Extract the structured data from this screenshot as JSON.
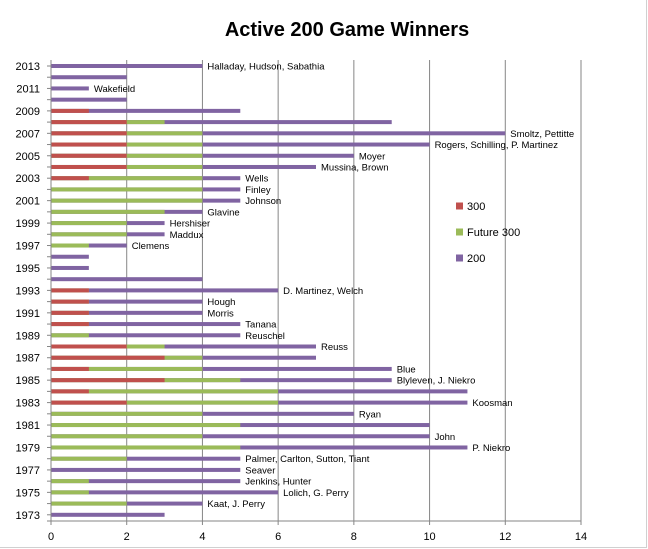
{
  "chart_data": {
    "type": "bar",
    "orientation": "horizontal",
    "stacked": "overlapping",
    "title": "Active 200 Game Winners",
    "xlabel": "",
    "ylabel": "",
    "xlim": [
      0,
      14
    ],
    "x_ticks": [
      0,
      2,
      4,
      6,
      8,
      10,
      12,
      14
    ],
    "grid": "vertical",
    "legend_position": "right",
    "series": [
      {
        "name": "300",
        "color": "#c0504d"
      },
      {
        "name": "Future 300",
        "color": "#9bbb59"
      },
      {
        "name": "200",
        "color": "#8064a2"
      }
    ],
    "years": [
      1973,
      1974,
      1975,
      1976,
      1977,
      1978,
      1979,
      1980,
      1981,
      1982,
      1983,
      1984,
      1985,
      1986,
      1987,
      1988,
      1989,
      1990,
      1991,
      1992,
      1993,
      1994,
      1995,
      1996,
      1997,
      1998,
      1999,
      2000,
      2001,
      2002,
      2003,
      2004,
      2005,
      2006,
      2007,
      2008,
      2009,
      2010,
      2011,
      2012,
      2013
    ],
    "year_tick_labels": [
      "1973",
      "1975",
      "1977",
      "1979",
      "1981",
      "1983",
      "1985",
      "1987",
      "1989",
      "1991",
      "1993",
      "1995",
      "1997",
      "1999",
      "2001",
      "2003",
      "2005",
      "2007",
      "2009",
      "2011",
      "2013"
    ],
    "values_300": [
      0,
      0,
      0,
      0,
      0,
      0,
      0,
      0,
      0,
      0,
      2,
      1,
      3,
      1,
      3,
      2,
      0,
      1,
      1,
      1,
      1,
      0,
      0,
      0,
      0,
      0,
      0,
      0,
      0,
      0,
      1,
      2,
      2,
      2,
      2,
      2,
      1,
      0,
      0,
      0,
      0
    ],
    "values_future_300": [
      0,
      2,
      1,
      1,
      0,
      2,
      5,
      4,
      5,
      4,
      6,
      6,
      5,
      4,
      4,
      3,
      1,
      1,
      1,
      1,
      1,
      0,
      0,
      0,
      1,
      2,
      2,
      3,
      4,
      4,
      4,
      4,
      4,
      4,
      4,
      3,
      0,
      0,
      0,
      0,
      0
    ],
    "values_200": [
      3,
      4,
      6,
      5,
      5,
      5,
      11,
      10,
      10,
      8,
      11,
      11,
      9,
      9,
      7,
      7,
      5,
      5,
      4,
      4,
      6,
      4,
      1,
      1,
      2,
      3,
      3,
      4,
      5,
      5,
      5,
      7,
      8,
      10,
      12,
      9,
      5,
      2,
      1,
      2,
      4
    ],
    "annotations": [
      {
        "year": 2013,
        "text": "Halladay, Hudson, Sabathia"
      },
      {
        "year": 2011,
        "text": "Wakefield"
      },
      {
        "year": 2007,
        "text": "Smoltz, Pettitte"
      },
      {
        "year": 2006,
        "text": "Rogers, Schilling, P. Martinez"
      },
      {
        "year": 2005,
        "text": "Moyer"
      },
      {
        "year": 2004,
        "text": "Mussina, Brown"
      },
      {
        "year": 2003,
        "text": "Wells"
      },
      {
        "year": 2002,
        "text": "Finley"
      },
      {
        "year": 2001,
        "text": "Johnson"
      },
      {
        "year": 2000,
        "text": "Glavine"
      },
      {
        "year": 1999,
        "text": "Hershiser"
      },
      {
        "year": 1998,
        "text": "Maddux"
      },
      {
        "year": 1997,
        "text": "Clemens"
      },
      {
        "year": 1993,
        "text": "D. Martinez, Welch"
      },
      {
        "year": 1992,
        "text": "Hough"
      },
      {
        "year": 1991,
        "text": "Morris"
      },
      {
        "year": 1990,
        "text": "Tanana"
      },
      {
        "year": 1989,
        "text": "Reuschel"
      },
      {
        "year": 1988,
        "text": "Reuss"
      },
      {
        "year": 1986,
        "text": "Blue"
      },
      {
        "year": 1985,
        "text": "Blyleven, J. Niekro"
      },
      {
        "year": 1983,
        "text": "Koosman"
      },
      {
        "year": 1982,
        "text": "Ryan"
      },
      {
        "year": 1980,
        "text": "John"
      },
      {
        "year": 1979,
        "text": "P. Niekro"
      },
      {
        "year": 1978,
        "text": "Palmer, Carlton, Sutton, Tiant"
      },
      {
        "year": 1977,
        "text": "Seaver"
      },
      {
        "year": 1976,
        "text": "Jenkins, Hunter"
      },
      {
        "year": 1975,
        "text": "Lolich, G. Perry"
      },
      {
        "year": 1974,
        "text": "Kaat, J. Perry"
      }
    ]
  }
}
